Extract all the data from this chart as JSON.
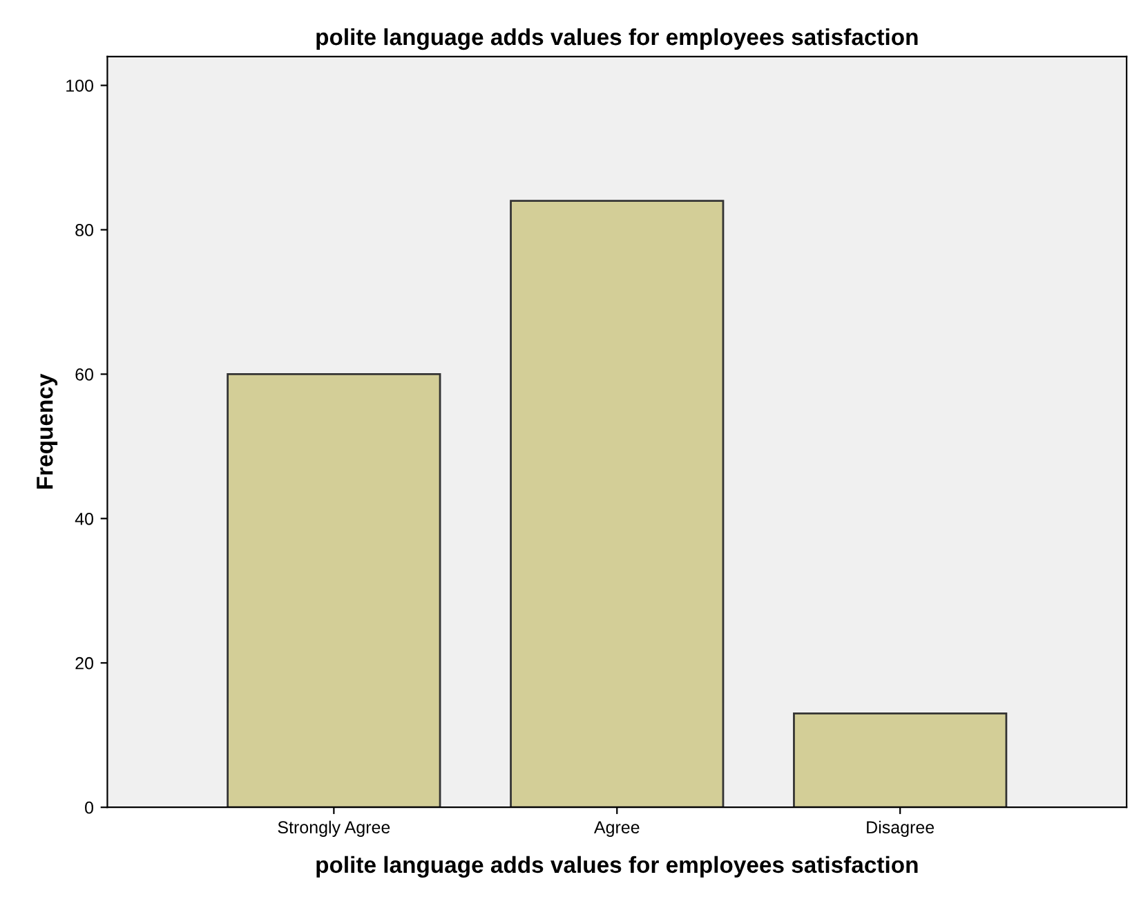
{
  "chart_data": {
    "type": "bar",
    "title": "polite language adds values for employees satisfaction",
    "xlabel": "polite language adds values for employees satisfaction",
    "ylabel": "Frequency",
    "categories": [
      "Strongly Agree",
      "Agree",
      "Disagree"
    ],
    "values": [
      60,
      84,
      13
    ],
    "color": "#d3ce97",
    "ylim": [
      0,
      104
    ],
    "yticks": [
      0,
      20,
      40,
      60,
      80,
      100
    ],
    "grid": false,
    "legend": false
  }
}
